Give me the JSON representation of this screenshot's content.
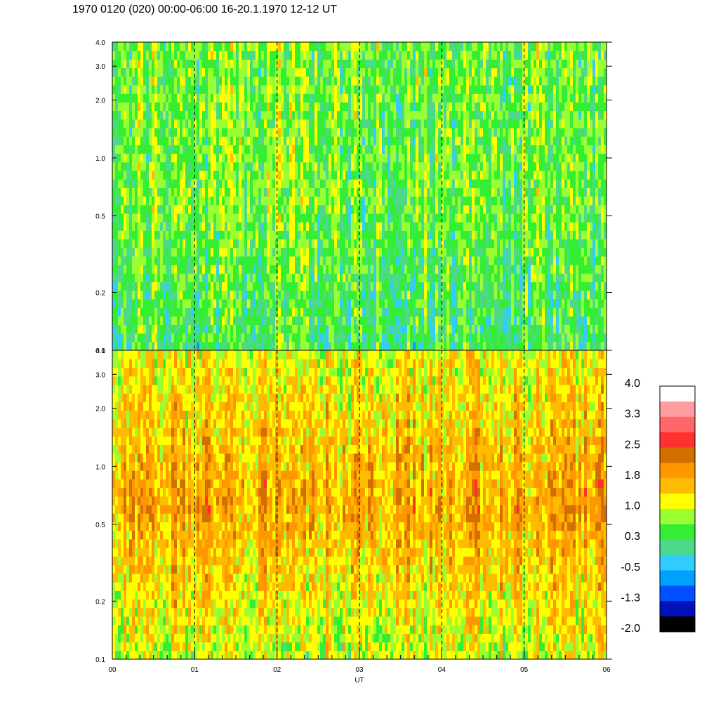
{
  "title": "1970 0120 (020) 00:00-06:00 16-20.1.1970  12-12 UT",
  "chart_data": [
    {
      "type": "heatmap",
      "panel": "top",
      "x_ticks": [
        "00",
        "01",
        "02",
        "03",
        "04",
        "05",
        "06"
      ],
      "x_range": [
        0,
        6
      ],
      "y_ticks": [
        {
          "value": 0.1,
          "label": "0.1"
        },
        {
          "value": 0.2,
          "label": "0.2"
        },
        {
          "value": 0.5,
          "label": "0.5"
        },
        {
          "value": 1.0,
          "label": "1.0"
        },
        {
          "value": 2.0,
          "label": "2.0"
        },
        {
          "value": 3.0,
          "label": "3.0"
        },
        {
          "value": 4.0,
          "label": "4.0"
        }
      ],
      "y_range": [
        0.1,
        4.0
      ],
      "y_scale": "log",
      "dashed_gridlines_at_x": [
        1,
        2,
        3,
        4,
        5
      ],
      "dominant_levels": {
        "low_freq": 0.3,
        "mid_freq": 0.6,
        "high_freq": 0.6
      }
    },
    {
      "type": "heatmap",
      "panel": "bottom",
      "x_ticks": [
        "00",
        "01",
        "02",
        "03",
        "04",
        "05",
        "06"
      ],
      "x_range": [
        0,
        6
      ],
      "xlabel": "UT",
      "y_ticks": [
        {
          "value": 0.1,
          "label": "0.1"
        },
        {
          "value": 0.2,
          "label": "0.2"
        },
        {
          "value": 0.5,
          "label": "0.5"
        },
        {
          "value": 1.0,
          "label": "1.0"
        },
        {
          "value": 2.0,
          "label": "2.0"
        },
        {
          "value": 3.0,
          "label": "3.0"
        },
        {
          "value": 4.0,
          "label": "4.0"
        }
      ],
      "y_range": [
        0.1,
        4.0
      ],
      "y_scale": "log",
      "dashed_gridlines_at_x": [
        1,
        2,
        3,
        4,
        5
      ],
      "dominant_levels": {
        "low_freq": 1.0,
        "mid_freq": 1.8,
        "high_freq": 1.2
      }
    }
  ],
  "colorbar": {
    "labels": [
      "4.0",
      "3.3",
      "2.5",
      "1.8",
      "1.0",
      "0.3",
      "-0.5",
      "-1.3",
      "-2.0"
    ],
    "colors": [
      "#ffffff",
      "#ff9da0",
      "#ff6868",
      "#ff3030",
      "#d36e00",
      "#ff9800",
      "#ffbb00",
      "#ffff00",
      "#99ff33",
      "#33ee33",
      "#4dd98a",
      "#33ccff",
      "#00a0ff",
      "#0050ff",
      "#0010bb",
      "#000000"
    ]
  }
}
